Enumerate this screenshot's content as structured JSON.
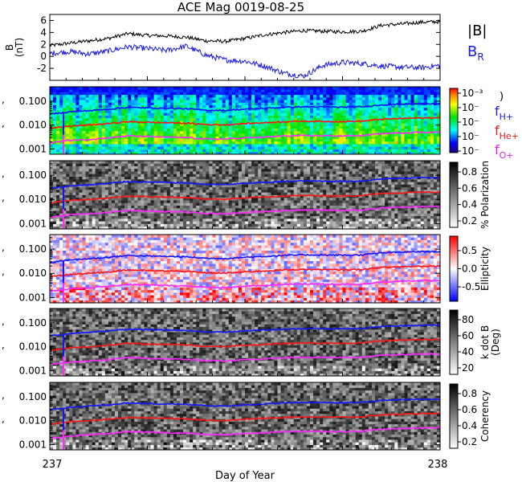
{
  "title": "ACE Mag 0019-08-25",
  "legend_mag": {
    "b_total": "|B|",
    "b_radial": "B",
    "b_radial_sub": "R"
  },
  "legend_freq": [
    {
      "base": "f",
      "sub": "H+",
      "color": "#2020e0"
    },
    {
      "base": "f",
      "sub": "He+",
      "color": "#e02020"
    },
    {
      "base": "f",
      "sub": "O+",
      "color": "#e020e0"
    }
  ],
  "colors": {
    "black_trace": "#000000",
    "blue_trace": "#1a1ae6",
    "h_line": "#1414ff",
    "he_line": "#ff1414",
    "o_line": "#ff28ff"
  },
  "chart_data": [
    {
      "type": "line",
      "panel": "magnetic field",
      "ylabel": "B",
      "yunit": "(nT)",
      "ylim": [
        -4,
        7
      ],
      "yticks": [
        "6",
        "4",
        "2",
        "0",
        "-2"
      ],
      "series": [
        {
          "name": "|B|",
          "x": [
            237.0,
            237.05,
            237.1,
            237.15,
            237.2,
            237.25,
            237.3,
            237.35,
            237.4,
            237.45,
            237.5,
            237.55,
            237.6,
            237.65,
            237.7,
            237.75,
            237.8,
            237.85,
            237.9,
            237.95,
            238.0
          ],
          "values": [
            1.8,
            2.2,
            2.6,
            3.0,
            3.8,
            3.5,
            3.4,
            3.2,
            2.6,
            2.5,
            3.0,
            3.6,
            4.0,
            4.3,
            4.2,
            4.1,
            4.2,
            5.2,
            5.4,
            5.7,
            5.8
          ]
        },
        {
          "name": "B_R",
          "x": [
            237.0,
            237.05,
            237.1,
            237.15,
            237.2,
            237.25,
            237.3,
            237.35,
            237.4,
            237.45,
            237.5,
            237.55,
            237.6,
            237.65,
            237.7,
            237.75,
            237.8,
            237.85,
            237.9,
            237.95,
            238.0
          ],
          "values": [
            0.5,
            0.8,
            0.4,
            0.9,
            1.6,
            1.3,
            1.0,
            1.7,
            0.2,
            -0.6,
            -0.8,
            -1.6,
            -2.8,
            -3.3,
            -1.5,
            -1.0,
            -1.2,
            -1.6,
            -1.8,
            -1.9,
            -1.5
          ]
        }
      ]
    },
    {
      "type": "heatmap",
      "panel": "power spectrum",
      "ylabel": "",
      "yscale": "log",
      "ylim": [
        0.0006,
        0.4
      ],
      "yticks": [
        "0.100",
        "0.010",
        "0.001"
      ],
      "colorbar": {
        "label": "",
        "ticks": [
          "10⁻³",
          "10⁻",
          "10⁻",
          "10⁻",
          "10⁻"
        ],
        "scheme": "rainbow"
      }
    },
    {
      "type": "heatmap",
      "panel": "polarization",
      "yscale": "log",
      "ylim": [
        0.0006,
        0.4
      ],
      "yticks": [
        "0.100",
        "0.010",
        "0.001"
      ],
      "colorbar": {
        "label": "% Polarization",
        "ticks": [
          "0.8",
          "0.6",
          "0.4",
          "0.2"
        ],
        "scheme": "gray"
      }
    },
    {
      "type": "heatmap",
      "panel": "ellipticity",
      "yscale": "log",
      "ylim": [
        0.0006,
        0.4
      ],
      "yticks": [
        "0.100",
        "0.010",
        "0.001"
      ],
      "colorbar": {
        "label": "Ellipticity",
        "ticks": [
          "0.5",
          "0.0",
          "-0.5"
        ],
        "scheme": "bwr"
      }
    },
    {
      "type": "heatmap",
      "panel": "k dot B",
      "yscale": "log",
      "ylim": [
        0.0006,
        0.4
      ],
      "yticks": [
        "0.100",
        "0.010",
        "0.001"
      ],
      "colorbar": {
        "label": "k dot B",
        "label2": "(Deg)",
        "ticks": [
          "80",
          "60",
          "40",
          "20"
        ],
        "scheme": "gray"
      }
    },
    {
      "type": "heatmap",
      "panel": "coherency",
      "yscale": "log",
      "ylim": [
        0.0006,
        0.4
      ],
      "yticks": [
        "0.100",
        "0.010",
        "0.001"
      ],
      "colorbar": {
        "label": "Coherency",
        "ticks": [
          "0.8",
          "0.6",
          "0.4",
          "0.2"
        ],
        "scheme": "gray"
      }
    }
  ],
  "gyrofrequency_lines": {
    "x": [
      237.0,
      237.05,
      237.1,
      237.15,
      237.2,
      237.25,
      237.3,
      237.35,
      237.4,
      237.45,
      237.5,
      237.55,
      237.6,
      237.65,
      237.7,
      237.75,
      237.8,
      237.85,
      237.9,
      237.95,
      238.0
    ],
    "f_H+": [
      0.028,
      0.036,
      0.04,
      0.046,
      0.055,
      0.052,
      0.05,
      0.048,
      0.042,
      0.041,
      0.046,
      0.05,
      0.055,
      0.058,
      0.057,
      0.056,
      0.058,
      0.07,
      0.075,
      0.079,
      0.08
    ],
    "f_He+": [
      0.007,
      0.009,
      0.01,
      0.0115,
      0.0138,
      0.013,
      0.0125,
      0.012,
      0.0105,
      0.0102,
      0.0115,
      0.0125,
      0.0138,
      0.0145,
      0.0142,
      0.014,
      0.0145,
      0.0175,
      0.0188,
      0.0198,
      0.02
    ],
    "f_O+": [
      0.0018,
      0.0023,
      0.0025,
      0.0029,
      0.0035,
      0.0033,
      0.0031,
      0.003,
      0.0026,
      0.0026,
      0.0029,
      0.0031,
      0.0035,
      0.0036,
      0.0036,
      0.0035,
      0.0036,
      0.0044,
      0.0047,
      0.005,
      0.005
    ]
  },
  "x_axis": {
    "label": "Day of Year",
    "start_label": "237",
    "end_label": "238",
    "xlim": [
      237,
      238
    ]
  }
}
